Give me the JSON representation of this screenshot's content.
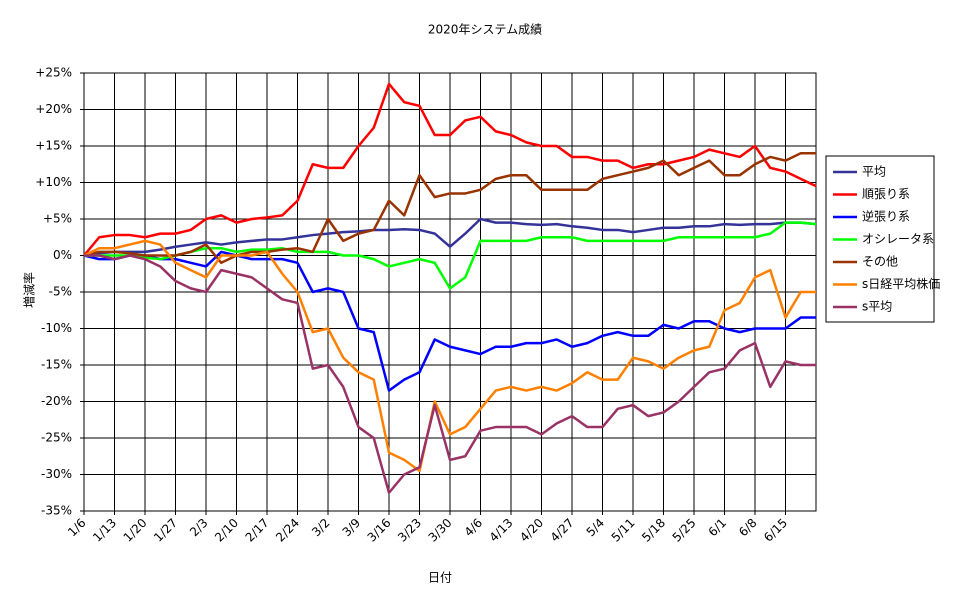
{
  "chart_data": {
    "type": "line",
    "title": "2020年システム成績",
    "xlabel": "日付",
    "ylabel": "増減率",
    "categories": [
      "1/6",
      null,
      "1/13",
      null,
      "1/20",
      null,
      "1/27",
      null,
      "2/3",
      null,
      "2/10",
      null,
      "2/17",
      null,
      "2/24",
      null,
      "3/2",
      null,
      "3/9",
      null,
      "3/16",
      null,
      "3/23",
      null,
      "3/30",
      null,
      "4/6",
      null,
      "4/13",
      null,
      "4/20",
      null,
      "4/27",
      null,
      "5/4",
      null,
      "5/11",
      null,
      "5/18",
      null,
      "5/25",
      null,
      "6/1",
      null,
      "6/8",
      null,
      "6/15",
      null,
      null
    ],
    "ylim": [
      -35,
      25
    ],
    "yticks": [
      {
        "value": -35,
        "label": "-35%"
      },
      {
        "value": -30,
        "label": "-30%"
      },
      {
        "value": -25,
        "label": "-25%"
      },
      {
        "value": -20,
        "label": "-20%"
      },
      {
        "value": -15,
        "label": "-15%"
      },
      {
        "value": -10,
        "label": "-10%"
      },
      {
        "value": -5,
        "label": "-5%"
      },
      {
        "value": 0,
        "label": "0%"
      },
      {
        "value": 5,
        "label": "+5%"
      },
      {
        "value": 10,
        "label": "+10%"
      },
      {
        "value": 15,
        "label": "+15%"
      },
      {
        "value": 20,
        "label": "+20%"
      },
      {
        "value": 25,
        "label": "+25%"
      }
    ],
    "grid": true,
    "legend": "right",
    "series": [
      {
        "name": "平均",
        "color": "#333399",
        "values": [
          0,
          0.3,
          0.5,
          0.5,
          0.5,
          0.8,
          1.2,
          1.5,
          1.8,
          1.5,
          1.8,
          2,
          2.2,
          2.2,
          2.5,
          2.8,
          3,
          3.2,
          3.3,
          3.5,
          3.5,
          3.6,
          3.5,
          3,
          1.2,
          3,
          5,
          4.5,
          4.5,
          4.3,
          4.2,
          4.3,
          4,
          3.8,
          3.5,
          3.5,
          3.2,
          3.5,
          3.8,
          3.8,
          4,
          4,
          4.3,
          4.2,
          4.3,
          4.3,
          4.5,
          4.5,
          4.3
        ]
      },
      {
        "name": "順張り系",
        "color": "#ff0000",
        "values": [
          0,
          2.5,
          2.8,
          2.8,
          2.5,
          3,
          3,
          3.5,
          5,
          5.5,
          4.5,
          5,
          5.2,
          5.5,
          7.5,
          12.5,
          12,
          12,
          15,
          17.5,
          23.5,
          21,
          20.5,
          16.5,
          16.5,
          18.5,
          19,
          17,
          16.5,
          15.5,
          15,
          15,
          13.5,
          13.5,
          13,
          13,
          12,
          12.5,
          12.5,
          13,
          13.5,
          14.5,
          14,
          13.5,
          15,
          12,
          11.5,
          10.5,
          9.5
        ]
      },
      {
        "name": "逆張り系",
        "color": "#0000ff",
        "values": [
          0,
          -0.5,
          -0.5,
          0,
          0,
          -0.5,
          -0.5,
          -1,
          -1.5,
          0.5,
          0,
          -0.5,
          -0.5,
          -0.5,
          -1,
          -5,
          -4.5,
          -5,
          -10,
          -10.5,
          -18.5,
          -17,
          -16,
          -11.5,
          -12.5,
          -13,
          -13.5,
          -12.5,
          -12.5,
          -12,
          -12,
          -11.5,
          -12.5,
          -12,
          -11,
          -10.5,
          -11,
          -11,
          -9.5,
          -10,
          -9,
          -9,
          -10,
          -10.5,
          -10,
          -10,
          -10,
          -8.5,
          -8.5
        ]
      },
      {
        "name": "オシレータ系",
        "color": "#00ff00",
        "values": [
          0,
          0,
          0,
          0,
          -0.3,
          -0.5,
          0,
          0.5,
          1,
          1,
          0.5,
          0.8,
          0.8,
          1,
          0.5,
          0.5,
          0.5,
          0,
          0,
          -0.5,
          -1.5,
          -1,
          -0.5,
          -1,
          -4.5,
          -3,
          2,
          2,
          2,
          2,
          2.5,
          2.5,
          2.5,
          2,
          2,
          2,
          2,
          2,
          2,
          2.5,
          2.5,
          2.5,
          2.5,
          2.5,
          2.5,
          3,
          4.5,
          4.5,
          4.3
        ]
      },
      {
        "name": "その他",
        "color": "#993300",
        "values": [
          0,
          0.5,
          0.5,
          0.3,
          0,
          0,
          0,
          0.5,
          1.5,
          -1,
          0,
          0.5,
          0.5,
          0.8,
          1,
          0.5,
          5,
          2,
          3,
          3.5,
          7.5,
          5.5,
          11,
          8,
          8.5,
          8.5,
          9,
          10.5,
          11,
          11,
          9,
          9,
          9,
          9,
          10.5,
          11,
          11.5,
          12,
          13,
          11,
          12,
          13,
          11,
          11,
          12.5,
          13.5,
          13,
          14,
          14
        ]
      },
      {
        "name": "s日経平均株価",
        "color": "#ff8000",
        "values": [
          0,
          1,
          1,
          1.5,
          2,
          1.5,
          -1,
          -2,
          -3,
          0,
          0,
          0,
          0.5,
          -2.5,
          -5,
          -10.5,
          -10,
          -14,
          -16,
          -17,
          -27,
          -28,
          -29.5,
          -20,
          -24.5,
          -23.5,
          -21,
          -18.5,
          -18,
          -18.5,
          -18,
          -18.5,
          -17.5,
          -16,
          -17,
          -17,
          -14,
          -14.5,
          -15.5,
          -14,
          -13,
          -12.5,
          -7.5,
          -6.5,
          -3,
          -2,
          -8.5,
          -5,
          -5
        ]
      },
      {
        "name": "s平均",
        "color": "#993366",
        "values": [
          0,
          0,
          -0.5,
          0,
          -0.5,
          -1.5,
          -3.5,
          -4.5,
          -5,
          -2,
          -2.5,
          -3,
          -4.5,
          -6,
          -6.5,
          -15.5,
          -15,
          -18,
          -23.5,
          -25,
          -32.5,
          -30,
          -29,
          -20.5,
          -28,
          -27.5,
          -24,
          -23.5,
          -23.5,
          -23.5,
          -24.5,
          -23,
          -22,
          -23.5,
          -23.5,
          -21,
          -20.5,
          -22,
          -21.5,
          -20,
          -18,
          -16,
          -15.5,
          -13,
          -12,
          -18,
          -14.5,
          -15,
          -15
        ]
      }
    ]
  }
}
